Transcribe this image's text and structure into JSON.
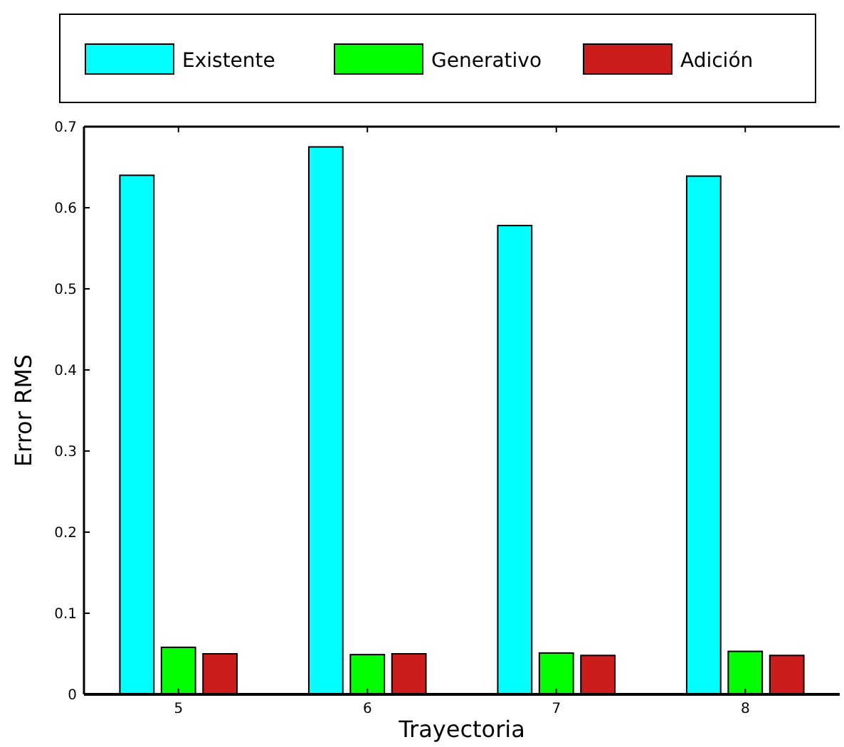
{
  "chart_data": {
    "type": "bar",
    "xlabel": "Trayectoria",
    "ylabel": "Error RMS",
    "categories": [
      "5",
      "6",
      "7",
      "8"
    ],
    "series": [
      {
        "name": "Existente",
        "color": "#00ffff",
        "values": [
          0.64,
          0.675,
          0.578,
          0.639
        ]
      },
      {
        "name": "Generativo",
        "color": "#00ff00",
        "values": [
          0.058,
          0.049,
          0.051,
          0.053
        ]
      },
      {
        "name": "Adición",
        "color": "#cc1c1c",
        "values": [
          0.05,
          0.05,
          0.048,
          0.048
        ]
      }
    ],
    "ylim": [
      0,
      0.7
    ],
    "yticks": [
      {
        "value": 0,
        "label": "0"
      },
      0.1,
      0.2,
      0.3,
      0.4,
      0.5,
      0.6,
      0.7
    ],
    "legend": "top",
    "grid": false
  }
}
